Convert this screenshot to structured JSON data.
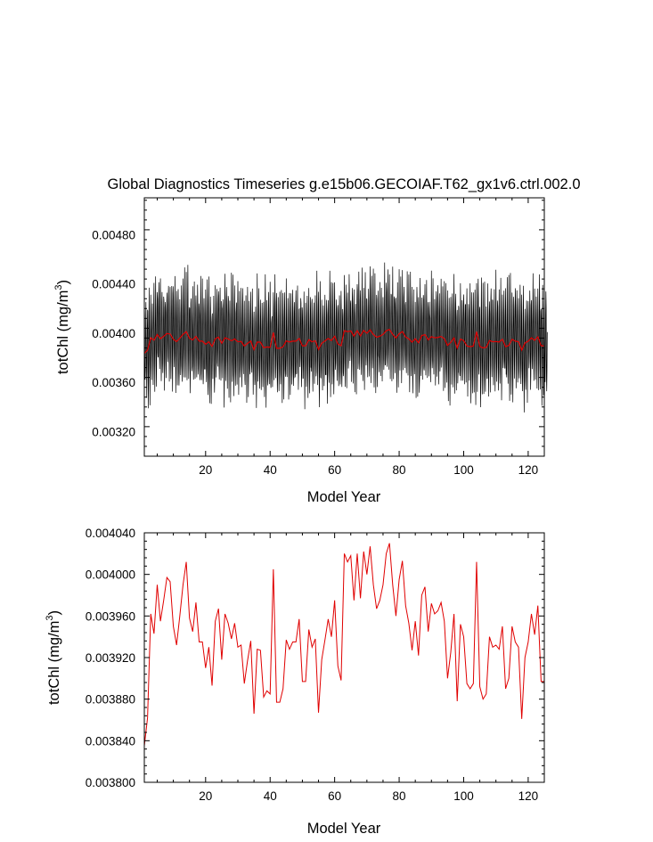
{
  "chart_data": [
    {
      "type": "line",
      "title": "Global Diagnostics Timeseries g.e15b06.GECOIAF.T62_gx1v6.ctrl.002.0",
      "xlabel": "Model Year",
      "ylabel_main": "totChl (mg/m",
      "ylabel_sup": "3",
      "ylabel_tail": ")",
      "xlim": [
        1,
        125
      ],
      "ylim": [
        0.003,
        0.0051
      ],
      "xticks": [
        20,
        40,
        60,
        80,
        100,
        120
      ],
      "yticks": [
        "0.00320",
        "0.00360",
        "0.00400",
        "0.00440",
        "0.00480"
      ],
      "yticks_val": [
        0.0032,
        0.0036,
        0.004,
        0.0044,
        0.0048
      ],
      "monthly_mean": 0.00393,
      "monthly_amplitude_low": 0.00045,
      "monthly_amplitude_high": 0.00052,
      "series": [
        {
          "color": "#000000",
          "style": "monthly"
        },
        {
          "color": "#e00000",
          "style": "annual"
        }
      ]
    },
    {
      "type": "line",
      "xlabel": "Model Year",
      "ylabel_main": "totChl (mg/m",
      "ylabel_sup": "3",
      "ylabel_tail": ")",
      "xlim": [
        1,
        125
      ],
      "ylim": [
        0.0038,
        0.00404
      ],
      "xticks": [
        20,
        40,
        60,
        80,
        100,
        120
      ],
      "yticks": [
        "0.003800",
        "0.003840",
        "0.003880",
        "0.003920",
        "0.003960",
        "0.004000",
        "0.004040"
      ],
      "yticks_val": [
        0.0038,
        0.00384,
        0.00388,
        0.00392,
        0.00396,
        0.004,
        0.00404
      ],
      "series": [
        {
          "color": "#e00000",
          "x": [
            1,
            2,
            3,
            4,
            5,
            6,
            7,
            8,
            9,
            10,
            11,
            12,
            13,
            14,
            15,
            16,
            17,
            18,
            19,
            20,
            21,
            22,
            23,
            24,
            25,
            26,
            27,
            28,
            29,
            30,
            31,
            32,
            33,
            34,
            35,
            36,
            37,
            38,
            39,
            40,
            41,
            42,
            43,
            44,
            45,
            46,
            47,
            48,
            49,
            50,
            51,
            52,
            53,
            54,
            55,
            56,
            57,
            58,
            59,
            60,
            61,
            62,
            63,
            64,
            65,
            66,
            67,
            68,
            69,
            70,
            71,
            72,
            73,
            74,
            75,
            76,
            77,
            78,
            79,
            80,
            81,
            82,
            83,
            84,
            85,
            86,
            87,
            88,
            89,
            90,
            91,
            92,
            93,
            94,
            95,
            96,
            97,
            98,
            99,
            100,
            101,
            102,
            103,
            104,
            105,
            106,
            107,
            108,
            109,
            110,
            111,
            112,
            113,
            114,
            115,
            116,
            117,
            118,
            119,
            120,
            121,
            122,
            123,
            124,
            125
          ],
          "y": [
            0.003835,
            0.003862,
            0.003962,
            0.003943,
            0.00399,
            0.003955,
            0.003975,
            0.003997,
            0.003993,
            0.00395,
            0.003932,
            0.00396,
            0.00399,
            0.004012,
            0.003958,
            0.003945,
            0.003973,
            0.003935,
            0.003935,
            0.00391,
            0.00393,
            0.003893,
            0.003955,
            0.003967,
            0.003918,
            0.003962,
            0.003953,
            0.003938,
            0.003953,
            0.00393,
            0.003932,
            0.003895,
            0.003917,
            0.003936,
            0.003866,
            0.003928,
            0.003927,
            0.003882,
            0.003888,
            0.003885,
            0.004005,
            0.003877,
            0.003877,
            0.00389,
            0.003937,
            0.003928,
            0.003935,
            0.003935,
            0.003957,
            0.003897,
            0.003897,
            0.003947,
            0.00393,
            0.003938,
            0.003867,
            0.003918,
            0.003937,
            0.003957,
            0.00394,
            0.003975,
            0.003912,
            0.003898,
            0.00402,
            0.004012,
            0.004018,
            0.003975,
            0.00402,
            0.003977,
            0.004022,
            0.004,
            0.004027,
            0.00399,
            0.003967,
            0.003975,
            0.00399,
            0.00402,
            0.00403,
            0.00399,
            0.00396,
            0.003995,
            0.004013,
            0.00397,
            0.003953,
            0.003927,
            0.003955,
            0.003922,
            0.00398,
            0.003988,
            0.003945,
            0.003972,
            0.003962,
            0.003965,
            0.003973,
            0.003955,
            0.0039,
            0.003925,
            0.003962,
            0.003878,
            0.003952,
            0.00394,
            0.003895,
            0.00389,
            0.003895,
            0.004012,
            0.003892,
            0.00388,
            0.003885,
            0.00394,
            0.00393,
            0.003932,
            0.003928,
            0.00395,
            0.00389,
            0.0039,
            0.00395,
            0.003935,
            0.00393,
            0.003861,
            0.00392,
            0.003935,
            0.003962,
            0.003942,
            0.00397,
            0.003897,
            0.003897
          ]
        }
      ]
    }
  ]
}
